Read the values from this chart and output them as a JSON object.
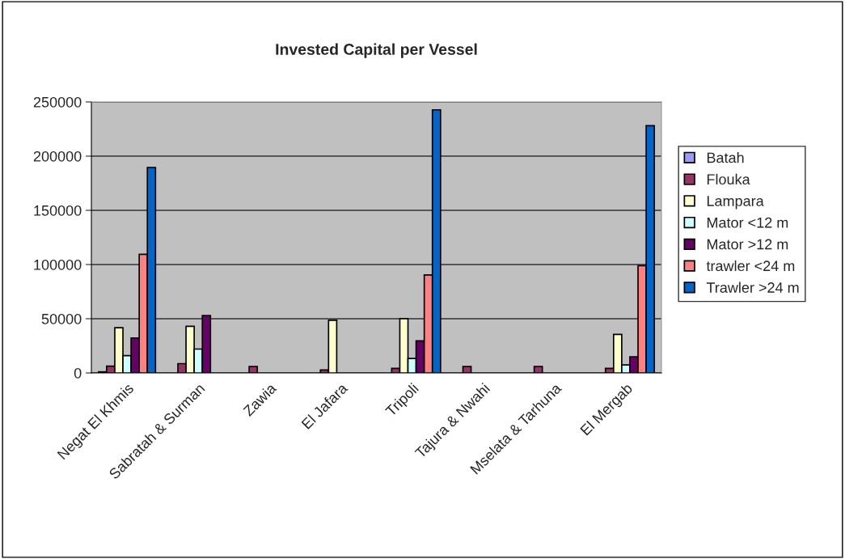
{
  "chart_data": {
    "type": "bar",
    "title": "Invested Capital per Vessel",
    "categories": [
      "Negat El Khmis",
      "Sabratah & Surman",
      "Zawia",
      "El Jafara",
      "Tripoli",
      "Tajura & Nwahi",
      "Mselata & Tarhuna",
      "El Mergab"
    ],
    "series": [
      {
        "name": "Batah",
        "color": "#9999ff",
        "values": [
          1000,
          null,
          null,
          null,
          null,
          null,
          null,
          null
        ]
      },
      {
        "name": "Flouka",
        "color": "#993366",
        "values": [
          6200,
          8600,
          5900,
          2700,
          4200,
          5900,
          5900,
          4200
        ]
      },
      {
        "name": "Lampara",
        "color": "#ffffcc",
        "values": [
          41700,
          43000,
          null,
          48600,
          50100,
          null,
          null,
          35600
        ]
      },
      {
        "name": "Mator <12 m",
        "color": "#ccffff",
        "values": [
          16000,
          22000,
          null,
          null,
          13300,
          null,
          null,
          7400
        ]
      },
      {
        "name": "Mator >12 m",
        "color": "#660066",
        "values": [
          32300,
          53000,
          null,
          null,
          29600,
          null,
          null,
          14800
        ]
      },
      {
        "name": "trawler <24 m",
        "color": "#ff8080",
        "values": [
          109400,
          null,
          null,
          null,
          90400,
          null,
          null,
          99000
        ]
      },
      {
        "name": "Trawler >24 m",
        "color": "#0066cc",
        "values": [
          189400,
          null,
          null,
          null,
          242700,
          null,
          null,
          228100
        ]
      }
    ],
    "ylim": [
      0,
      250000
    ],
    "yticks": [
      0,
      50000,
      100000,
      150000,
      200000,
      250000
    ],
    "grid": "y",
    "legend": "right"
  }
}
